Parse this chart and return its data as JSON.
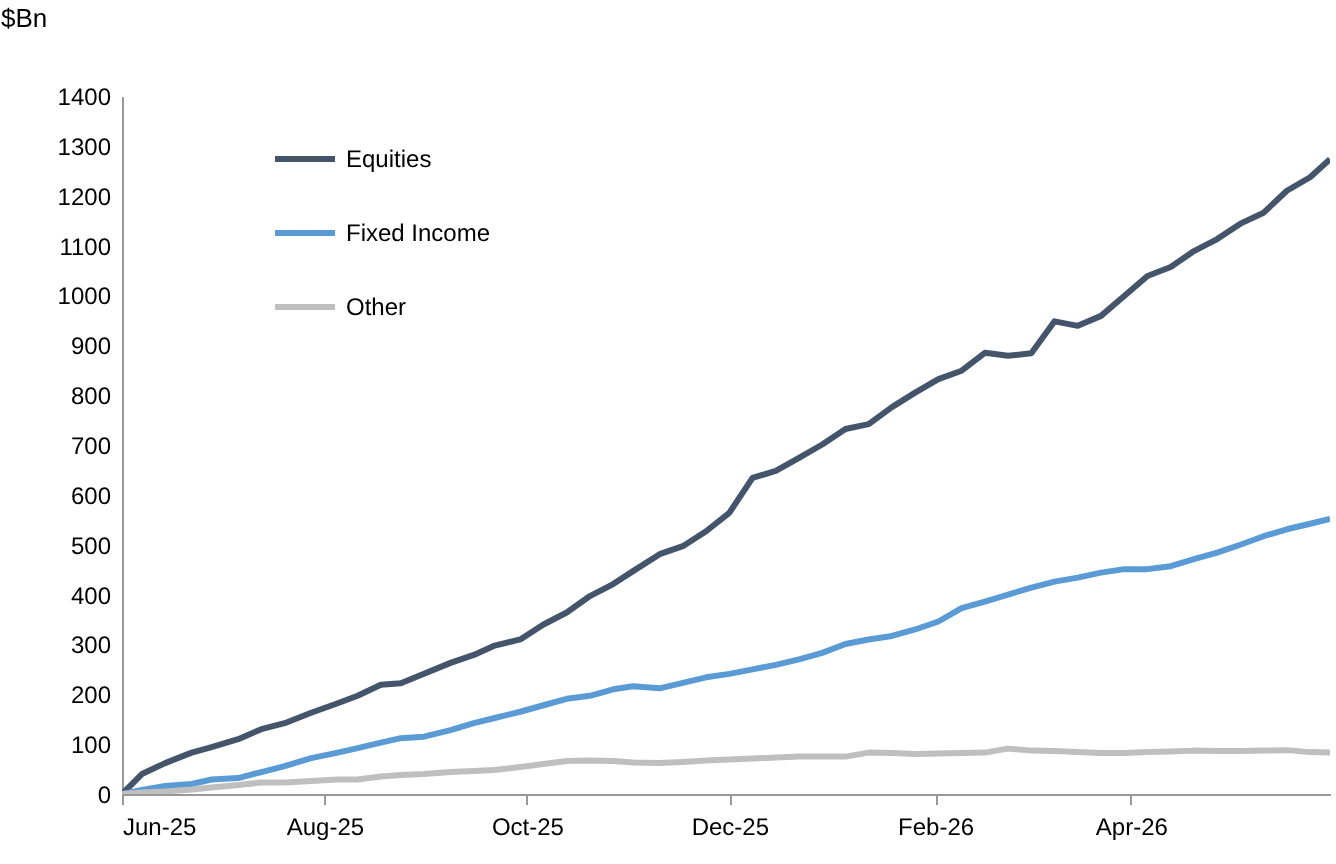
{
  "chart_data": {
    "type": "line",
    "ylabel": "$Bn",
    "x": [
      "2025-06-01",
      "2025-06-07",
      "2025-06-14",
      "2025-06-22",
      "2025-06-28",
      "2025-07-06",
      "2025-07-13",
      "2025-07-20",
      "2025-07-28",
      "2025-08-05",
      "2025-08-11",
      "2025-08-18",
      "2025-08-24",
      "2025-08-31",
      "2025-09-08",
      "2025-09-15",
      "2025-09-21",
      "2025-09-29",
      "2025-10-06",
      "2025-10-13",
      "2025-10-20",
      "2025-10-27",
      "2025-11-02",
      "2025-11-10",
      "2025-11-17",
      "2025-11-24",
      "2025-12-01",
      "2025-12-08",
      "2025-12-15",
      "2025-12-22",
      "2025-12-29",
      "2026-01-05",
      "2026-01-12",
      "2026-01-19",
      "2026-01-26",
      "2026-02-02",
      "2026-02-09",
      "2026-02-16",
      "2026-02-23",
      "2026-03-02",
      "2026-03-09",
      "2026-03-16",
      "2026-03-23",
      "2026-03-30",
      "2026-04-06",
      "2026-04-13",
      "2026-04-20",
      "2026-04-27",
      "2026-05-04",
      "2026-05-11",
      "2026-05-18",
      "2026-05-25",
      "2026-05-31"
    ],
    "series": [
      {
        "name": "Equities",
        "color": "#44546a",
        "values": [
          0,
          40,
          62,
          83,
          94,
          110,
          130,
          142,
          163,
          182,
          197,
          219,
          222,
          241,
          263,
          279,
          297,
          310,
          340,
          364,
          397,
          421,
          447,
          481,
          497,
          527,
          564,
          634,
          648,
          674,
          701,
          732,
          742,
          776,
          805,
          832,
          849,
          885,
          879,
          884,
          948,
          939,
          959,
          999,
          1039,
          1057,
          1089,
          1113,
          1144,
          1166,
          1210,
          1237,
          1273
        ]
      },
      {
        "name": "Fixed Income",
        "color": "#5b9bd5",
        "values": [
          0,
          8,
          16,
          20,
          29,
          32,
          44,
          56,
          72,
          83,
          92,
          103,
          112,
          115,
          128,
          142,
          152,
          165,
          178,
          191,
          197,
          210,
          216,
          212,
          223,
          234,
          241,
          250,
          259,
          270,
          283,
          301,
          310,
          317,
          330,
          346,
          373,
          386,
          400,
          414,
          426,
          434,
          444,
          451,
          451,
          457,
          471,
          484,
          500,
          517,
          531,
          542,
          552
        ]
      },
      {
        "name": "Other",
        "color": "#bfbfbf",
        "values": [
          0,
          3,
          5,
          9,
          13,
          18,
          23,
          23,
          26,
          29,
          29,
          35,
          38,
          40,
          44,
          46,
          48,
          54,
          60,
          66,
          67,
          66,
          63,
          62,
          64,
          67,
          69,
          71,
          73,
          75,
          75,
          75,
          83,
          82,
          80,
          81,
          82,
          83,
          91,
          87,
          86,
          84,
          82,
          82,
          84,
          85,
          87,
          86,
          86,
          87,
          88,
          84,
          83
        ]
      }
    ],
    "xlim": [
      "2025-06-01",
      "2026-05-31"
    ],
    "xticks": [
      {
        "value": "2025-06-01",
        "label": "Jun-25"
      },
      {
        "value": "2025-08-01",
        "label": "Aug-25"
      },
      {
        "value": "2025-10-01",
        "label": "Oct-25"
      },
      {
        "value": "2025-12-01",
        "label": "Dec-25"
      },
      {
        "value": "2026-02-01",
        "label": "Feb-26"
      },
      {
        "value": "2026-04-01",
        "label": "Apr-26"
      }
    ],
    "ylim": [
      0,
      1400
    ],
    "yticks": [
      0,
      100,
      200,
      300,
      400,
      500,
      600,
      700,
      800,
      900,
      1000,
      1100,
      1200,
      1300,
      1400
    ],
    "grid": false,
    "legend": "top left",
    "marker": "none",
    "line_style": "solid"
  }
}
